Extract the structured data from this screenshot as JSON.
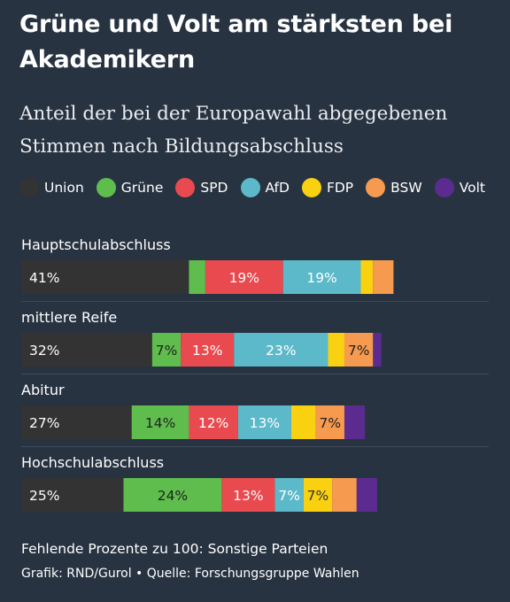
{
  "chart_data": {
    "type": "bar",
    "stacked": true,
    "orientation": "horizontal",
    "title": "Grüne und Volt am stärksten bei Akademikern",
    "subtitle": "Anteil der bei der Europawahl abgegebenen Stimmen nach Bildungsabschluss",
    "legend_position": "top",
    "categories": [
      "Hauptschulabschluss",
      "mittlere Reife",
      "Abitur",
      "Hochschulabschluss"
    ],
    "series": [
      {
        "name": "Union",
        "color": "#333333",
        "values": [
          41,
          32,
          27,
          25
        ],
        "labels": [
          "41%",
          "32%",
          "27%",
          "25%"
        ]
      },
      {
        "name": "Grüne",
        "color": "#5fbd4e",
        "values": [
          4,
          7,
          14,
          24
        ],
        "labels": [
          "",
          "7%",
          "14%",
          "24%"
        ]
      },
      {
        "name": "SPD",
        "color": "#e94a4f",
        "values": [
          19,
          13,
          12,
          13
        ],
        "labels": [
          "19%",
          "13%",
          "12%",
          "13%"
        ]
      },
      {
        "name": "AfD",
        "color": "#5cb9c9",
        "values": [
          19,
          23,
          13,
          7
        ],
        "labels": [
          "19%",
          "23%",
          "13%",
          "7%"
        ]
      },
      {
        "name": "FDP",
        "color": "#f9d110",
        "values": [
          3,
          4,
          6,
          7
        ],
        "labels": [
          "",
          "",
          "",
          "7%"
        ]
      },
      {
        "name": "BSW",
        "color": "#f59a4e",
        "values": [
          5,
          7,
          7,
          6
        ],
        "labels": [
          "",
          "7%",
          "7%",
          ""
        ]
      },
      {
        "name": "Volt",
        "color": "#5b2b8f",
        "values": [
          0,
          2,
          5,
          5
        ],
        "labels": [
          "",
          "",
          "",
          ""
        ]
      }
    ],
    "xlim": [
      0,
      100
    ]
  },
  "footnote": "Fehlende Prozente zu 100: Sonstige Parteien",
  "credit": "Grafik: RND/Gurol • Quelle: Forschungsgruppe Wahlen"
}
